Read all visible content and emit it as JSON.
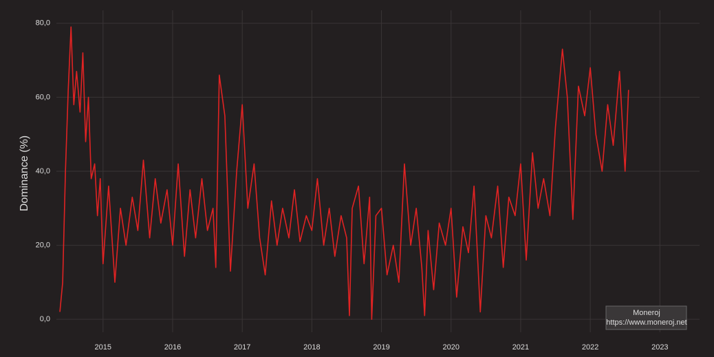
{
  "chart_data": {
    "type": "line",
    "ylabel": "Dominance (%)",
    "annotations": [
      "Moneroj",
      "https://www.moneroj.net"
    ],
    "color": "#e02323",
    "grid": true,
    "xlim": [
      2014.33,
      2023.57
    ],
    "xticks": [
      2015,
      2016,
      2017,
      2018,
      2019,
      2020,
      2021,
      2022,
      2023
    ],
    "ylim": [
      -3.5,
      83.5
    ],
    "yticks": [
      {
        "value": 0,
        "label": "0,0"
      },
      {
        "value": 20,
        "label": "20,0"
      },
      {
        "value": 40,
        "label": "40,0"
      },
      {
        "value": 60,
        "label": "60,0"
      },
      {
        "value": 80,
        "label": "80,0"
      }
    ],
    "x": [
      2014.38,
      2014.42,
      2014.46,
      2014.5,
      2014.54,
      2014.58,
      2014.62,
      2014.67,
      2014.71,
      2014.75,
      2014.79,
      2014.83,
      2014.88,
      2014.92,
      2014.96,
      2015.0,
      2015.08,
      2015.17,
      2015.25,
      2015.33,
      2015.42,
      2015.5,
      2015.58,
      2015.67,
      2015.75,
      2015.83,
      2015.92,
      2016.0,
      2016.08,
      2016.17,
      2016.25,
      2016.33,
      2016.42,
      2016.5,
      2016.58,
      2016.62,
      2016.67,
      2016.75,
      2016.83,
      2016.92,
      2017.0,
      2017.08,
      2017.17,
      2017.25,
      2017.33,
      2017.42,
      2017.5,
      2017.58,
      2017.67,
      2017.75,
      2017.83,
      2017.92,
      2018.0,
      2018.08,
      2018.17,
      2018.25,
      2018.33,
      2018.42,
      2018.5,
      2018.54,
      2018.58,
      2018.67,
      2018.75,
      2018.83,
      2018.86,
      2018.92,
      2019.0,
      2019.08,
      2019.17,
      2019.25,
      2019.33,
      2019.42,
      2019.5,
      2019.58,
      2019.62,
      2019.67,
      2019.75,
      2019.83,
      2019.92,
      2020.0,
      2020.08,
      2020.17,
      2020.25,
      2020.33,
      2020.42,
      2020.5,
      2020.58,
      2020.67,
      2020.75,
      2020.83,
      2020.92,
      2021.0,
      2021.08,
      2021.17,
      2021.25,
      2021.33,
      2021.42,
      2021.5,
      2021.6,
      2021.67,
      2021.75,
      2021.83,
      2021.92,
      2022.0,
      2022.08,
      2022.17,
      2022.25,
      2022.33,
      2022.42,
      2022.5,
      2022.55
    ],
    "values": [
      2,
      10,
      40,
      62,
      79,
      58,
      67,
      56,
      72,
      48,
      60,
      38,
      42,
      28,
      38,
      15,
      36,
      10,
      30,
      20,
      33,
      24,
      43,
      22,
      38,
      26,
      35,
      20,
      42,
      17,
      35,
      22,
      38,
      24,
      30,
      14,
      66,
      55,
      13,
      40,
      58,
      30,
      42,
      22,
      12,
      32,
      20,
      30,
      22,
      35,
      21,
      28,
      24,
      38,
      20,
      30,
      17,
      28,
      22,
      1,
      30,
      36,
      15,
      33,
      0,
      28,
      30,
      12,
      20,
      10,
      42,
      20,
      30,
      14,
      1,
      24,
      8,
      26,
      20,
      30,
      6,
      25,
      18,
      36,
      2,
      28,
      22,
      36,
      14,
      33,
      28,
      42,
      16,
      45,
      30,
      38,
      28,
      52,
      73,
      60,
      27,
      63,
      55,
      68,
      50,
      40,
      58,
      47,
      67,
      40,
      62
    ]
  }
}
